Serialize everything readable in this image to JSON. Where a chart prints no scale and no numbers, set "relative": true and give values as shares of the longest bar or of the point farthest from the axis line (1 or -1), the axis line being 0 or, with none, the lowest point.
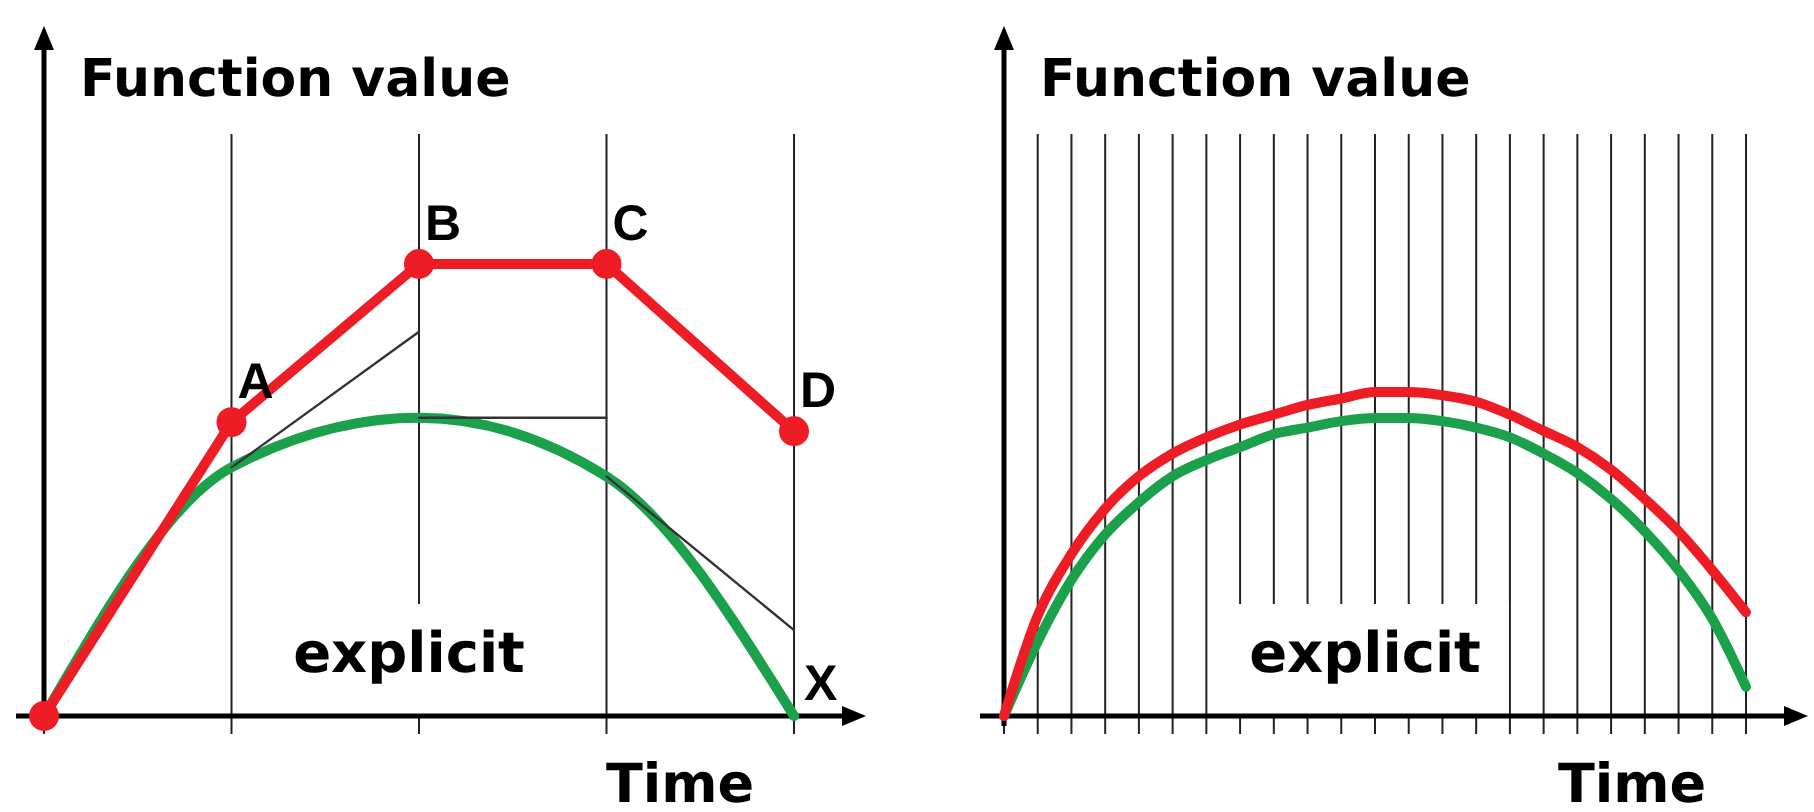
{
  "chart_data": [
    {
      "type": "line",
      "ylabel": "Function value",
      "xlabel": "Time",
      "relative": true,
      "grid": "x",
      "categories": [
        null,
        null,
        null,
        null,
        null
      ],
      "series": [
        {
          "color": "#1ba04b",
          "values": [
            0,
            0.55,
            0.66,
            0.53,
            0
          ]
        },
        {
          "color": "#333333",
          "values": [
            null,
            0.55,
            0.85,
            null,
            null
          ]
        },
        {
          "color": "#333333",
          "values": [
            null,
            null,
            0.66,
            0.66,
            null
          ]
        },
        {
          "color": "#333333",
          "values": [
            null,
            null,
            null,
            0.53,
            0.19
          ]
        },
        {
          "color": "#ee1c24",
          "marker": "circle",
          "values": [
            0,
            0.65,
            1,
            1,
            0.63
          ]
        }
      ],
      "annotations": [
        "explicit",
        "X",
        {
          "text": "A",
          "y": 0.65
        },
        {
          "text": "B",
          "y": 1
        },
        {
          "text": "C",
          "y": 1
        },
        {
          "text": "D",
          "y": 0.63
        }
      ]
    },
    {
      "type": "line",
      "ylabel": "Function value",
      "xlabel": "Time",
      "relative": true,
      "grid": "x",
      "categories": [
        null,
        null,
        null,
        null,
        null,
        null,
        null,
        null,
        null,
        null,
        null,
        null,
        null,
        null,
        null,
        null,
        null,
        null,
        null,
        null,
        null,
        null,
        null
      ],
      "series": [
        {
          "color": "#1ba04b",
          "values": [
            0,
            0.23,
            0.42,
            0.56,
            0.66,
            0.74,
            0.79,
            0.83,
            0.87,
            0.89,
            0.91,
            0.92,
            0.92,
            0.91,
            0.89,
            0.86,
            0.81,
            0.75,
            0.67,
            0.57,
            0.45,
            0.3,
            0.09
          ]
        },
        {
          "color": "#ee1c24",
          "values": [
            0,
            0.31,
            0.5,
            0.64,
            0.74,
            0.81,
            0.86,
            0.9,
            0.93,
            0.96,
            0.98,
            1,
            1,
            0.99,
            0.97,
            0.93,
            0.88,
            0.83,
            0.76,
            0.67,
            0.57,
            0.45,
            0.32
          ]
        }
      ],
      "annotations": [
        "explicit"
      ]
    }
  ]
}
